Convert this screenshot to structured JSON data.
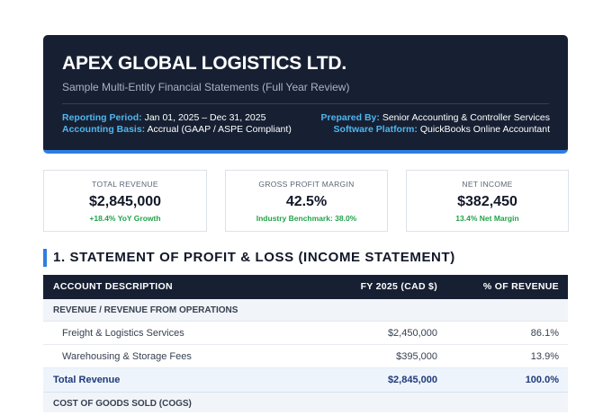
{
  "header": {
    "title": "APEX GLOBAL LOGISTICS LTD.",
    "subtitle": "Sample Multi-Entity Financial Statements (Full Year Review)",
    "meta_left": [
      {
        "label": "Reporting Period:",
        "value": "Jan 01, 2025 – Dec 31, 2025"
      },
      {
        "label": "Accounting Basis:",
        "value": "Accrual (GAAP / ASPE Compliant)"
      }
    ],
    "meta_right": [
      {
        "label": "Prepared By:",
        "value": "Senior Accounting & Controller Services"
      },
      {
        "label": "Software Platform:",
        "value": "QuickBooks Online Accountant"
      }
    ]
  },
  "kpis": [
    {
      "label": "TOTAL REVENUE",
      "value": "$2,845,000",
      "note": "+18.4% YoY Growth"
    },
    {
      "label": "GROSS PROFIT MARGIN",
      "value": "42.5%",
      "note": "Industry Benchmark: 38.0%"
    },
    {
      "label": "NET INCOME",
      "value": "$382,450",
      "note": "13.4% Net Margin"
    }
  ],
  "section": {
    "title": "1. STATEMENT OF PROFIT & LOSS (INCOME STATEMENT)"
  },
  "table": {
    "columns": [
      "ACCOUNT DESCRIPTION",
      "FY 2025 (CAD $)",
      "% OF REVENUE"
    ],
    "groups": [
      {
        "heading": "REVENUE / REVENUE FROM OPERATIONS",
        "rows": [
          [
            "Freight & Logistics Services",
            "$2,450,000",
            "86.1%"
          ],
          [
            "Warehousing & Storage Fees",
            "$395,000",
            "13.9%"
          ]
        ],
        "total": [
          "Total Revenue",
          "$2,845,000",
          "100.0%"
        ]
      },
      {
        "heading": "COST OF GOODS SOLD (COGS)"
      }
    ]
  }
}
